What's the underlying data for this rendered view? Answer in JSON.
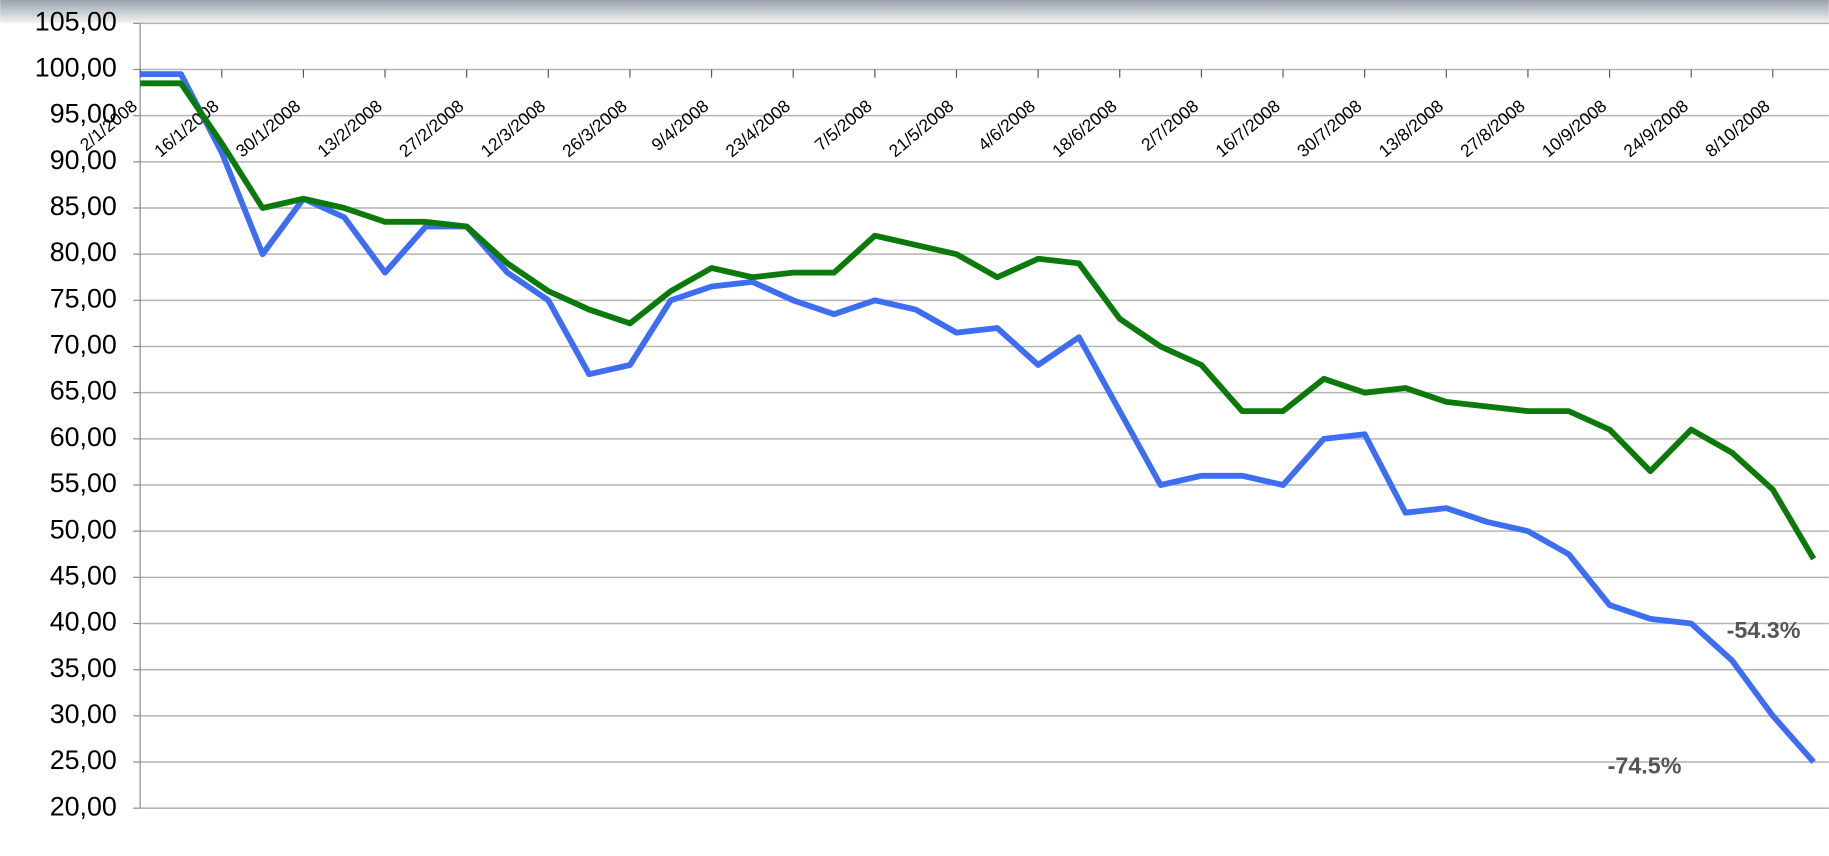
{
  "chart_data": {
    "type": "line",
    "categories": [
      "2/1/2008",
      null,
      "16/1/2008",
      null,
      "30/1/2008",
      null,
      "13/2/2008",
      null,
      "27/2/2008",
      null,
      "12/3/2008",
      null,
      "26/3/2008",
      null,
      "9/4/2008",
      null,
      "23/4/2008",
      null,
      "7/5/2008",
      null,
      "21/5/2008",
      null,
      "4/6/2008",
      null,
      "18/6/2008",
      null,
      "2/7/2008",
      null,
      "16/7/2008",
      null,
      "30/7/2008",
      null,
      "13/8/2008",
      null,
      "27/8/2008",
      null,
      "10/9/2008",
      null,
      "24/9/2008",
      null,
      "8/10/2008",
      null
    ],
    "series": [
      {
        "color": "#3d6ef2",
        "values": [
          99.5,
          99.5,
          91,
          80,
          86,
          84,
          78,
          83,
          83,
          78,
          75,
          67,
          68,
          75,
          76.5,
          77,
          75,
          73.5,
          75,
          74,
          71.5,
          72,
          68,
          71,
          63,
          55,
          56,
          56,
          55,
          60,
          60.5,
          52,
          52.5,
          51,
          50,
          47.5,
          42,
          40.5,
          40,
          36,
          30,
          25
        ]
      },
      {
        "color": "#0b7a0b",
        "values": [
          98.5,
          98.5,
          92,
          85,
          86,
          85,
          83.5,
          83.5,
          83,
          79,
          76,
          74,
          72.5,
          76,
          78.5,
          77.5,
          78,
          78,
          82,
          81,
          80,
          77.5,
          79.5,
          79,
          73,
          70,
          68,
          63,
          63,
          66.5,
          65,
          65.5,
          64,
          63.5,
          63,
          63,
          61,
          56.5,
          61,
          58.5,
          54.5,
          47
        ]
      }
    ],
    "annotations": [
      "-54.3%",
      "-74.5%"
    ],
    "ylim": [
      20,
      105
    ],
    "yticks": [
      {
        "value": 20,
        "label": "20,00"
      },
      {
        "value": 25,
        "label": "25,00"
      },
      {
        "value": 30,
        "label": "30,00"
      },
      {
        "value": 35,
        "label": "35,00"
      },
      {
        "value": 40,
        "label": "40,00"
      },
      {
        "value": 45,
        "label": "45,00"
      },
      {
        "value": 50,
        "label": "50,00"
      },
      {
        "value": 55,
        "label": "55,00"
      },
      {
        "value": 60,
        "label": "60,00"
      },
      {
        "value": 65,
        "label": "65,00"
      },
      {
        "value": 70,
        "label": "70,00"
      },
      {
        "value": 75,
        "label": "75,00"
      },
      {
        "value": 80,
        "label": "80,00"
      },
      {
        "value": 85,
        "label": "85,00"
      },
      {
        "value": 90,
        "label": "90,00"
      },
      {
        "value": 95,
        "label": "95,00"
      },
      {
        "value": 100,
        "label": "100,00"
      },
      {
        "value": 105,
        "label": "105,00"
      }
    ],
    "grid": true
  }
}
